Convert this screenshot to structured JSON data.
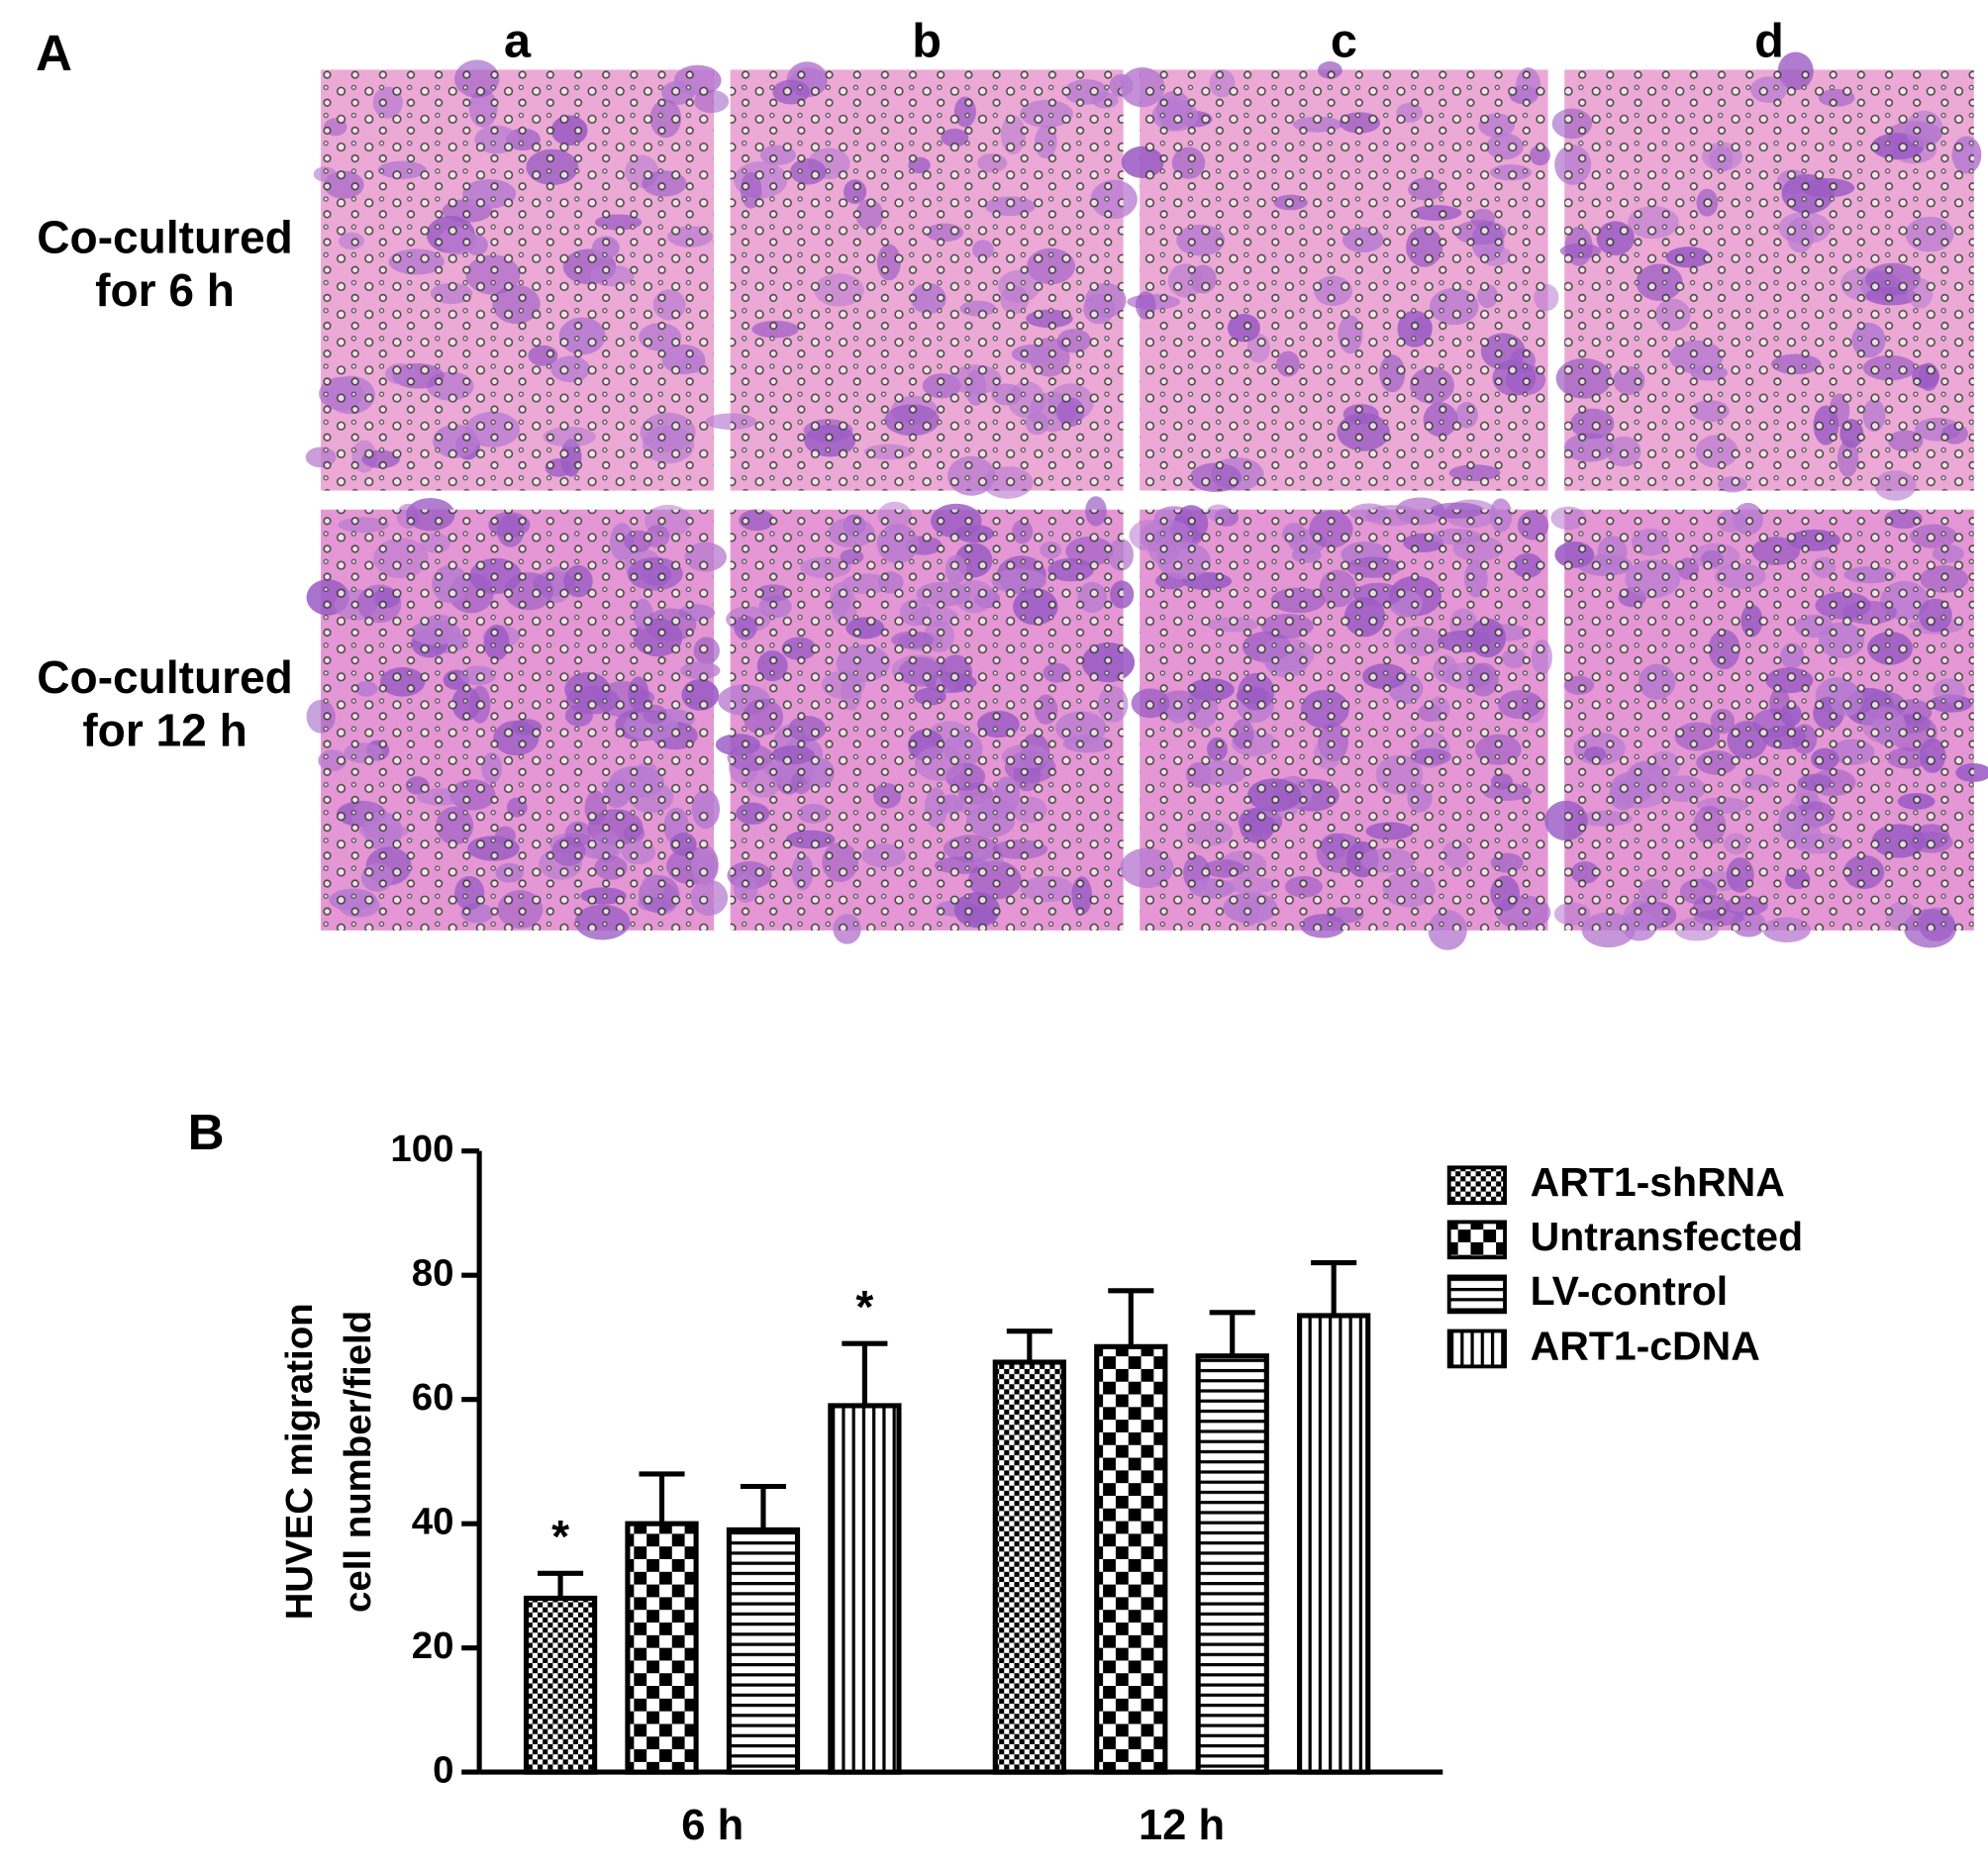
{
  "panel_a": {
    "label": "A",
    "columns": [
      "a",
      "b",
      "c",
      "d"
    ],
    "rows": [
      [
        "Co-cultured",
        "for 6 h"
      ],
      [
        "Co-cultured",
        "for 12 h"
      ]
    ]
  },
  "chart_data": {
    "type": "bar",
    "panel_label": "B",
    "ylabel": [
      "HUVEC  migration",
      "cell number/field"
    ],
    "categories": [
      "6 h",
      "12 h"
    ],
    "ylim": [
      0,
      100
    ],
    "yticks": [
      0,
      20,
      40,
      60,
      80,
      100
    ],
    "grid": false,
    "legend": "upper right",
    "series": [
      {
        "name": "ART1-shRNA",
        "color": "#000000",
        "pattern": "fine-checker",
        "values": [
          28,
          66
        ],
        "errors": [
          4,
          5
        ],
        "significance": [
          "*",
          null
        ]
      },
      {
        "name": "Untransfected",
        "color": "#000000",
        "pattern": "checker",
        "values": [
          40,
          68.5
        ],
        "errors": [
          8,
          9
        ],
        "significance": [
          null,
          null
        ]
      },
      {
        "name": "LV-control",
        "color": "#000000",
        "pattern": "horizontal",
        "values": [
          39,
          67
        ],
        "errors": [
          7,
          7
        ],
        "significance": [
          null,
          null
        ]
      },
      {
        "name": "ART1-cDNA",
        "color": "#000000",
        "pattern": "vertical",
        "values": [
          59,
          73.5
        ],
        "errors": [
          10,
          8.5
        ],
        "significance": [
          "*",
          null
        ]
      }
    ]
  }
}
